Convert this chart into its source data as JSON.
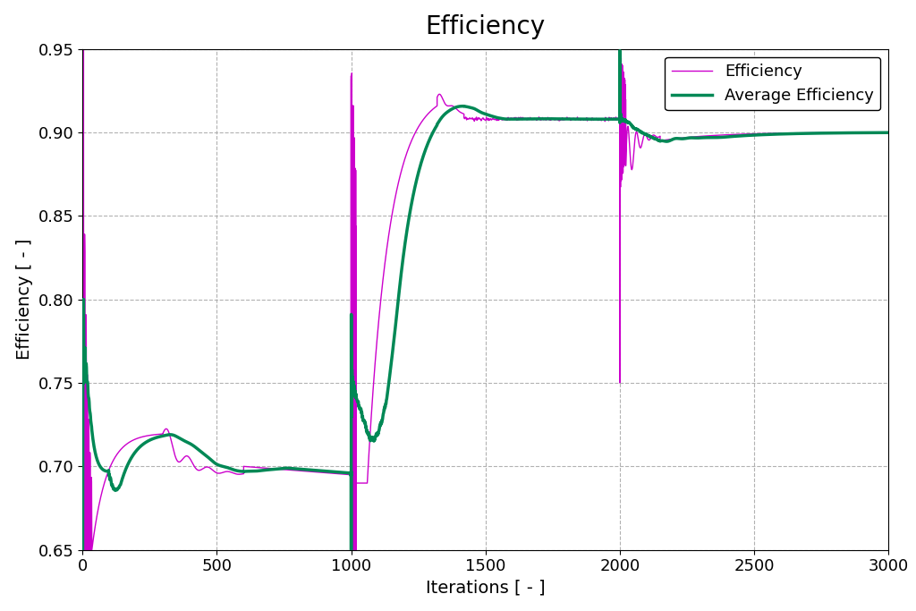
{
  "title": "Efficiency",
  "xlabel": "Iterations [ - ]",
  "ylabel": "Efficiency [ - ]",
  "xlim": [
    0,
    3000
  ],
  "ylim": [
    0.65,
    0.95
  ],
  "xticks": [
    0,
    500,
    1000,
    1500,
    2000,
    2500,
    3000
  ],
  "yticks": [
    0.65,
    0.7,
    0.75,
    0.8,
    0.85,
    0.9,
    0.95
  ],
  "grid_color": "#aaaaaa",
  "grid_linestyle": "--",
  "background_color": "#ffffff",
  "efficiency_color": "#cc00cc",
  "avg_efficiency_color": "#008855",
  "efficiency_linewidth": 1.0,
  "avg_efficiency_linewidth": 2.5,
  "title_fontsize": 20,
  "label_fontsize": 14,
  "tick_fontsize": 13,
  "legend_fontsize": 13
}
